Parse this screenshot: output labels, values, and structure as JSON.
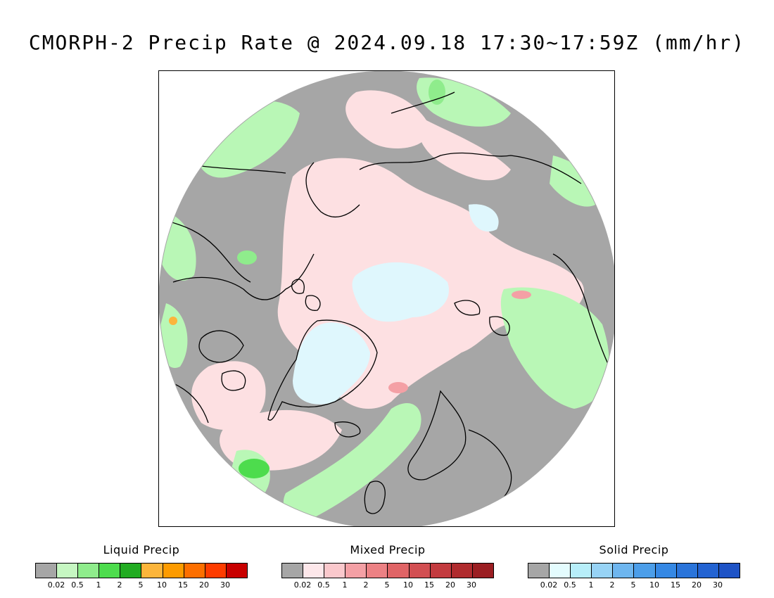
{
  "title": "CMORPH-2 Precip Rate @ 2024.09.18 17:30~17:59Z (mm/hr)",
  "map": {
    "projection": "north polar stereographic",
    "background_color": "#a6a6a6",
    "coastline_color": "#000000",
    "precip_regions": [
      {
        "name": "liquid-precip-regions",
        "category": "liquid",
        "color": "#b9f7b6"
      },
      {
        "name": "mixed-precip-regions",
        "category": "mixed",
        "color": "#fde0e2"
      },
      {
        "name": "solid-precip-regions",
        "category": "solid",
        "color": "#dff7fd"
      }
    ]
  },
  "legends": [
    {
      "title": "Liquid Precip",
      "colors": [
        "#a6a6a6",
        "#c6f7c2",
        "#8fec8c",
        "#4ddc4d",
        "#22ac22",
        "#fcb53b",
        "#fd9b00",
        "#fd6f00",
        "#fe3c00",
        "#c80000"
      ],
      "ticks": [
        "0.02",
        "0.5",
        "1",
        "2",
        "5",
        "10",
        "15",
        "20",
        "30"
      ]
    },
    {
      "title": "Mixed Precip",
      "colors": [
        "#a6a6a6",
        "#fde7ea",
        "#fac8cc",
        "#f4a0a5",
        "#ec8184",
        "#e06466",
        "#d24f52",
        "#c33b3f",
        "#b02b2e",
        "#9b1e22"
      ],
      "ticks": [
        "0.02",
        "0.5",
        "1",
        "2",
        "5",
        "10",
        "15",
        "20",
        "30"
      ]
    },
    {
      "title": "Solid Precip",
      "colors": [
        "#a6a6a6",
        "#e4fcfe",
        "#b7eef9",
        "#97d3f5",
        "#6eb6ef",
        "#4c9ee9",
        "#3588e4",
        "#2a74da",
        "#2363d2",
        "#1e53c6"
      ],
      "ticks": [
        "0.02",
        "0.5",
        "1",
        "2",
        "5",
        "10",
        "15",
        "20",
        "30"
      ]
    }
  ]
}
